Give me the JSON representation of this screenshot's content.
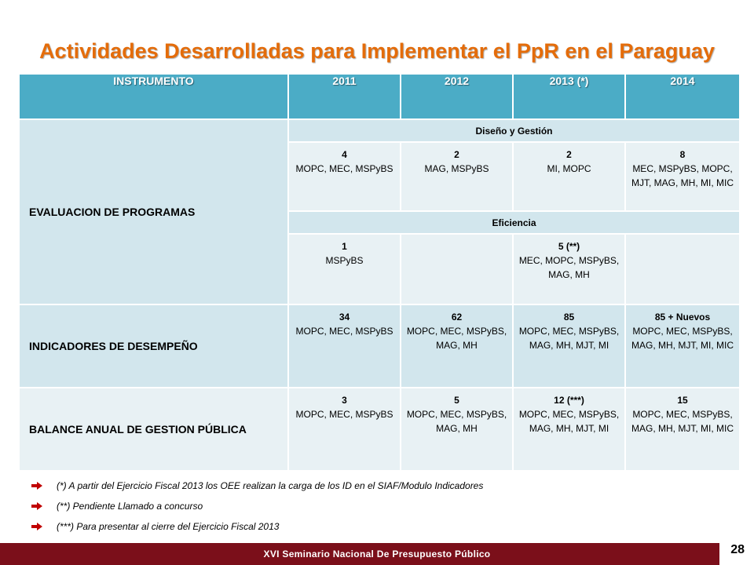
{
  "title": "Actividades Desarrolladas para Implementar el PpR en el Paraguay",
  "table": {
    "headers": [
      "INSTRUMENTO",
      "2011",
      "2012",
      "2013 (*)",
      "2014"
    ],
    "rows": {
      "evaluacion": {
        "label": "EVALUACION DE PROGRAMAS",
        "diseno_label": "Diseño y Gestión",
        "diseno": [
          {
            "num": "4",
            "orgs": "MOPC, MEC, MSPyBS"
          },
          {
            "num": "2",
            "orgs": "MAG, MSPyBS"
          },
          {
            "num": "2",
            "orgs": "MI, MOPC"
          },
          {
            "num": "8",
            "orgs": "MEC, MSPyBS, MOPC, MJT, MAG, MH, MI, MIC"
          }
        ],
        "eficiencia_label": "Eficiencia",
        "eficiencia": [
          {
            "num": "1",
            "orgs": "MSPyBS"
          },
          {
            "num": "",
            "orgs": ""
          },
          {
            "num": "5 (**)",
            "orgs": "MEC, MOPC, MSPyBS, MAG, MH"
          },
          {
            "num": "",
            "orgs": ""
          }
        ]
      },
      "indicadores": {
        "label": "INDICADORES DE DESEMPEÑO",
        "cells": [
          {
            "num": "34",
            "orgs": "MOPC, MEC, MSPyBS"
          },
          {
            "num": "62",
            "orgs": "MOPC, MEC, MSPyBS, MAG, MH"
          },
          {
            "num": "85",
            "orgs": "MOPC, MEC, MSPyBS, MAG, MH, MJT, MI"
          },
          {
            "num": "85 + Nuevos",
            "orgs": "MOPC, MEC, MSPyBS, MAG, MH, MJT, MI, MIC"
          }
        ]
      },
      "balance": {
        "label": "BALANCE ANUAL DE GESTION PÚBLICA",
        "cells": [
          {
            "num": "3",
            "orgs": "MOPC, MEC, MSPyBS"
          },
          {
            "num": "5",
            "orgs": "MOPC, MEC, MSPyBS, MAG, MH"
          },
          {
            "num": "12 (***)",
            "orgs": "MOPC, MEC, MSPyBS, MAG, MH, MJT, MI"
          },
          {
            "num": "15",
            "orgs": "MOPC, MEC, MSPyBS, MAG, MH, MJT, MI, MIC"
          }
        ]
      }
    }
  },
  "notes": [
    "(*) A partir del Ejercicio Fiscal 2013 los OEE realizan la carga de los ID en el SIAF/Modulo Indicadores",
    "(**) Pendiente Llamado a concurso",
    "(***)  Para presentar al cierre del Ejercicio Fiscal 2013"
  ],
  "footer": {
    "text": "XVI Seminario Nacional De Presupuesto Público",
    "page": "28"
  },
  "colors": {
    "title": "#e46c0a",
    "header_bg": "#4bacc6",
    "footer_bg": "#7b0f1a",
    "bullet": "#c00000"
  }
}
